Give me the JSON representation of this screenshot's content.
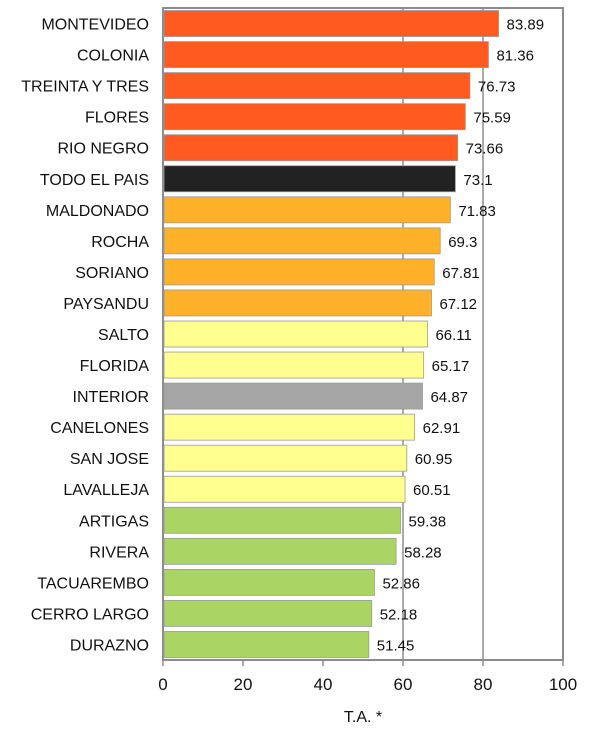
{
  "chart_data": {
    "type": "bar",
    "orientation": "horizontal",
    "xlabel": "T.A. *",
    "xlim": [
      0,
      100
    ],
    "xticks": [
      "0",
      "20",
      "40",
      "60",
      "80",
      "100"
    ],
    "grid": "vertical gridlines at 60 and 80",
    "legend": "none",
    "categories": [
      "MONTEVIDEO",
      "COLONIA",
      "TREINTA Y TRES",
      "FLORES",
      "RIO NEGRO",
      "TODO EL PAIS",
      "MALDONADO",
      "ROCHA",
      "SORIANO",
      "PAYSANDU",
      "SALTO",
      "FLORIDA",
      "INTERIOR",
      "CANELONES",
      "SAN JOSE",
      "LAVALLEJA",
      "ARTIGAS",
      "RIVERA",
      "TACUAREMBO",
      "CERRO LARGO",
      "DURAZNO"
    ],
    "values": [
      83.89,
      81.36,
      76.73,
      75.59,
      73.66,
      73.1,
      71.83,
      69.3,
      67.81,
      67.12,
      66.11,
      65.17,
      64.87,
      62.91,
      60.95,
      60.51,
      59.38,
      58.28,
      52.86,
      52.18,
      51.45
    ],
    "value_labels": [
      "83.89",
      "81.36",
      "76.73",
      "75.59",
      "73.66",
      "73.1",
      "71.83",
      "69.3",
      "67.81",
      "67.12",
      "66.11",
      "65.17",
      "64.87",
      "62.91",
      "60.95",
      "60.51",
      "59.38",
      "58.28",
      "52.86",
      "52.18",
      "51.45"
    ],
    "bar_colors": [
      "#ff5a1f",
      "#ff5a1f",
      "#ff5a1f",
      "#ff5a1f",
      "#ff5a1f",
      "#222222",
      "#ffb129",
      "#ffb129",
      "#ffb129",
      "#ffb129",
      "#ffff8f",
      "#ffff8f",
      "#a6a6a6",
      "#ffff8f",
      "#ffff8f",
      "#ffff8f",
      "#aad464",
      "#aad464",
      "#aad464",
      "#aad464",
      "#aad464"
    ]
  }
}
